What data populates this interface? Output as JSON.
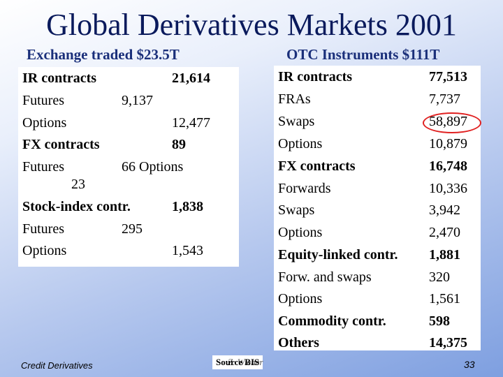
{
  "title": "Global Derivatives Markets 2001",
  "exchange": {
    "heading": "Exchange traded  $23.5T",
    "rows": [
      {
        "label": "IR contracts",
        "value": "21,614"
      },
      {
        "label": "Futures",
        "value": "9,137"
      },
      {
        "label": "Options",
        "value": "12,477"
      },
      {
        "label": "FX contracts",
        "value": "89"
      },
      {
        "label": "Futures",
        "value": "66 Options"
      },
      {
        "label": "",
        "value": "23"
      },
      {
        "label": "Stock-index contr.",
        "value": "1,838"
      },
      {
        "label": "Futures",
        "value": "295"
      },
      {
        "label": "Options",
        "value": "1,543"
      }
    ]
  },
  "otc": {
    "heading": "OTC Instruments  $111T",
    "rows": [
      {
        "label": "IR contracts",
        "value": "77,513"
      },
      {
        "label": "FRAs",
        "value": "7,737"
      },
      {
        "label": "Swaps",
        "value": "58,897"
      },
      {
        "label": "Options",
        "value": "10,879"
      },
      {
        "label": "FX contracts",
        "value": "16,748"
      },
      {
        "label": "Forwards",
        "value": "10,336"
      },
      {
        "label": "Swaps",
        "value": "3,942"
      },
      {
        "label": "Options",
        "value": "2,470"
      },
      {
        "label": "Equity-linked contr.",
        "value": "1,881"
      },
      {
        "label": "Forw. and swaps",
        "value": "320"
      },
      {
        "label": "Options",
        "value": "1,561"
      },
      {
        "label": "Commodity contr.",
        "value": "598"
      },
      {
        "label": "Others",
        "value": "14,375"
      }
    ]
  },
  "footer": {
    "left": "Credit Derivatives",
    "source": "Source BIS",
    "author": "Z. Wiener",
    "page": "33"
  },
  "colors": {
    "title": "#0a1a5c",
    "heading": "#1a2f7a",
    "highlight_circle": "#e02020"
  }
}
